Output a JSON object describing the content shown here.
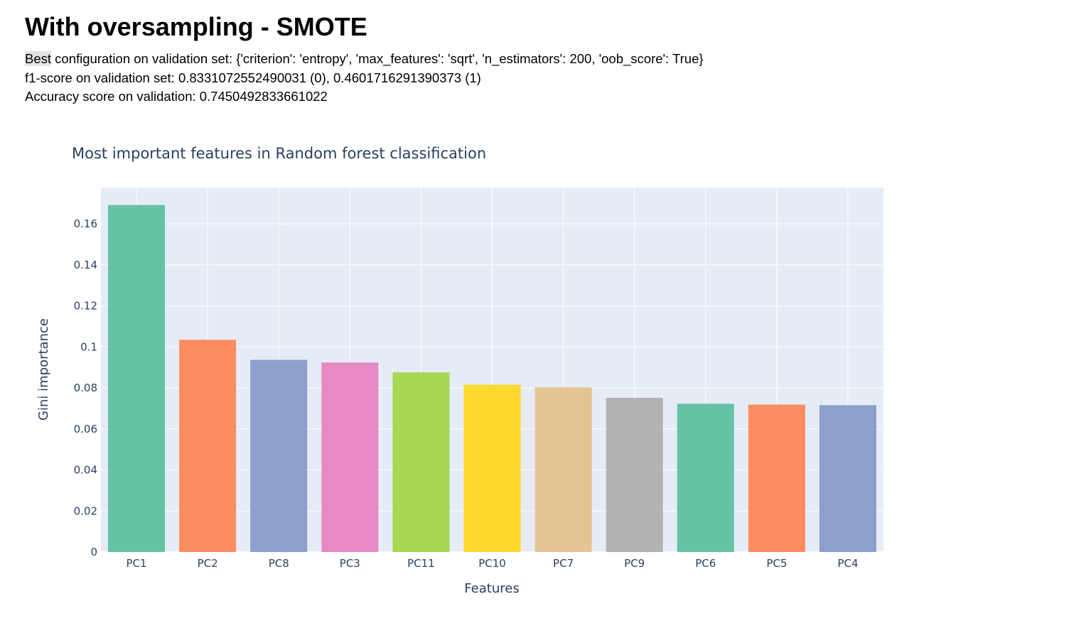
{
  "page": {
    "heading": "With oversampling - SMOTE",
    "best_prefix": "Best",
    "best_rest": " configuration on validation set: {'criterion': 'entropy', 'max_features': 'sqrt', 'n_estimators': 200, 'oob_score': True}",
    "f1_line": "f1-score on validation set: 0.8331072552490031 (0), 0.4601716291390373 (1)",
    "accuracy_line": "Accuracy score on validation: 0.7450492833661022"
  },
  "chart_data": {
    "type": "bar",
    "title": "Most important features in Random forest classification",
    "xlabel": "Features",
    "ylabel": "Gini importance",
    "categories": [
      "PC1",
      "PC2",
      "PC8",
      "PC3",
      "PC11",
      "PC10",
      "PC7",
      "PC9",
      "PC6",
      "PC5",
      "PC4"
    ],
    "values": [
      0.1692,
      0.1035,
      0.0937,
      0.0924,
      0.0876,
      0.0816,
      0.0803,
      0.0752,
      0.0723,
      0.0719,
      0.0716
    ],
    "colors": [
      "#66c2a5",
      "#fc8d62",
      "#8da0cb",
      "#e78ac3",
      "#a6d854",
      "#ffd92f",
      "#e5c494",
      "#b3b3b3",
      "#66c2a5",
      "#fc8d62",
      "#8da0cb"
    ],
    "y_ticks": [
      0,
      0.02,
      0.04,
      0.06,
      0.08,
      0.1,
      0.12,
      0.14,
      0.16
    ],
    "y_tick_labels": [
      "0",
      "0.02",
      "0.04",
      "0.06",
      "0.08",
      "0.1",
      "0.12",
      "0.14",
      "0.16"
    ],
    "ylim": [
      0,
      0.1777
    ],
    "plot_background": "#e5ecf6",
    "grid": true,
    "legend": false
  }
}
